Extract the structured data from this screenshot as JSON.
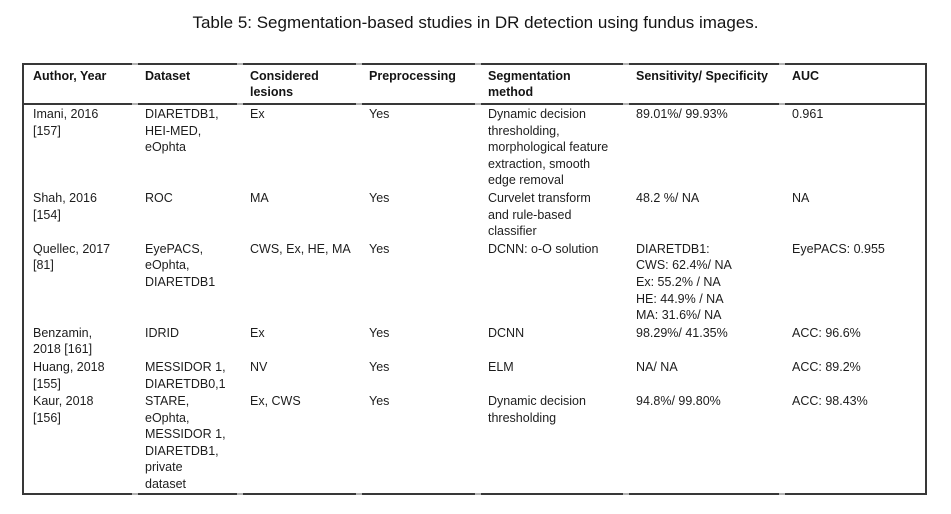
{
  "title": "Table 5: Segmentation-based studies in DR detection using fundus images.",
  "table": {
    "headers": [
      "Author, Year",
      "Dataset",
      [
        "Considered",
        "lesions"
      ],
      "Preprocessing",
      [
        "Segmentation",
        "method"
      ],
      "Sensitivity/ Specificity",
      "AUC"
    ],
    "rows": [
      {
        "author": [
          "Imani, 2016",
          "[157]"
        ],
        "dataset": [
          "DIARETDB1,",
          "HEI-MED,",
          "eOphta"
        ],
        "lesions": "Ex",
        "preprocessing": "Yes",
        "method": [
          "Dynamic decision",
          "thresholding,",
          "morphological feature",
          "extraction, smooth",
          "edge removal"
        ],
        "sens_spec": "89.01%/ 99.93%",
        "auc": "0.961"
      },
      {
        "author": [
          "Shah, 2016",
          "[154]"
        ],
        "dataset": "ROC",
        "lesions": "MA",
        "preprocessing": "Yes",
        "method": [
          "Curvelet transform",
          "and rule-based",
          "classifier"
        ],
        "sens_spec": "48.2 %/ NA",
        "auc": "NA"
      },
      {
        "author": [
          "Quellec, 2017",
          "[81]"
        ],
        "dataset": [
          "EyePACS,",
          "eOphta,",
          "DIARETDB1"
        ],
        "lesions": "CWS, Ex, HE, MA",
        "preprocessing": "Yes",
        "method": "DCNN: o-O solution",
        "sens_spec": [
          "DIARETDB1:",
          "CWS: 62.4%/ NA",
          "Ex: 55.2% / NA",
          "HE: 44.9% / NA",
          "MA: 31.6%/ NA"
        ],
        "auc": "EyePACS: 0.955"
      },
      {
        "author": [
          "Benzamin,",
          "2018 [161]"
        ],
        "dataset": "IDRID",
        "lesions": "Ex",
        "preprocessing": "Yes",
        "method": "DCNN",
        "sens_spec": "98.29%/ 41.35%",
        "auc": "ACC: 96.6%"
      },
      {
        "author": [
          "Huang, 2018",
          "[155]"
        ],
        "dataset": [
          "MESSIDOR 1,",
          "DIARETDB0,1"
        ],
        "lesions": "NV",
        "preprocessing": "Yes",
        "method": "ELM",
        "sens_spec": "NA/ NA",
        "auc": "ACC: 89.2%"
      },
      {
        "author": [
          "Kaur, 2018",
          "[156]"
        ],
        "dataset": [
          "STARE,",
          "eOphta,",
          "MESSIDOR 1,",
          "DIARETDB1,",
          "private",
          "dataset"
        ],
        "lesions": "Ex, CWS",
        "preprocessing": "Yes",
        "method": [
          "Dynamic decision",
          "thresholding"
        ],
        "sens_spec": "94.8%/ 99.80%",
        "auc": "ACC: 98.43%"
      }
    ]
  },
  "colors": {
    "border": "#383838",
    "text": "#1d1d1d",
    "tick": "#b3b3b3",
    "background": "#ffffff"
  }
}
